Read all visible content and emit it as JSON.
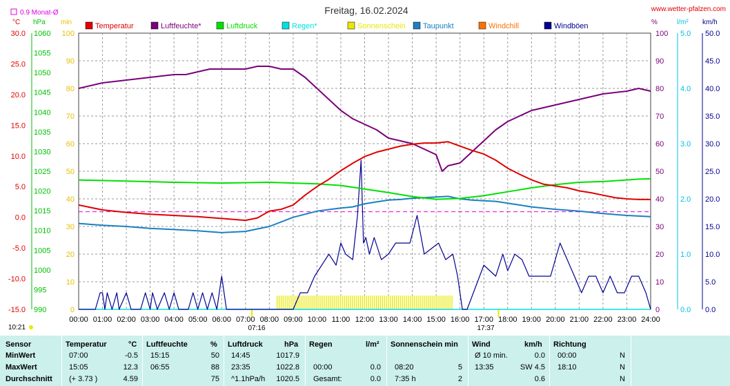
{
  "header": {
    "title": "Freitag, 16.02.2024",
    "site": "www.wetter-pfalzen.com",
    "monat_label": "0.9 Monat-Ø"
  },
  "units": {
    "degC": "°C",
    "hpa": "hPa",
    "min": "min",
    "pct": "%",
    "lm2": "l/m²",
    "kmh": "km/h"
  },
  "axes": {
    "temp_ticks": [
      "30.0",
      "25.0",
      "20.0",
      "15.0",
      "10.0",
      "5.0",
      "0.0",
      "-5.0",
      "-10.0",
      "-15.0"
    ],
    "press_ticks": [
      "1060",
      "1055",
      "1050",
      "1045",
      "1040",
      "1035",
      "1030",
      "1025",
      "1020",
      "1015",
      "1010",
      "1005",
      "1000",
      "995",
      "990"
    ],
    "min_ticks": [
      "100",
      "90",
      "80",
      "70",
      "60",
      "50",
      "40",
      "30",
      "20",
      "10",
      "0"
    ],
    "pct_ticks": [
      "100",
      "90",
      "80",
      "70",
      "60",
      "50",
      "40",
      "30",
      "20",
      "10",
      "0"
    ],
    "rain_ticks": [
      "5.0",
      "4.0",
      "3.0",
      "2.0",
      "1.0",
      "0.0"
    ],
    "wind_ticks": [
      "50.0",
      "45.0",
      "40.0",
      "35.0",
      "30.0",
      "25.0",
      "20.0",
      "15.0",
      "10.0",
      "5.0",
      "0.0"
    ],
    "time_ticks": [
      "00:00",
      "01:00",
      "02:00",
      "03:00",
      "04:00",
      "05:00",
      "06:00",
      "07:00",
      "08:00",
      "09:00",
      "10:00",
      "11:00",
      "12:00",
      "13:00",
      "14:00",
      "15:00",
      "16:00",
      "17:00",
      "18:00",
      "19:00",
      "20:00",
      "21:00",
      "22:00",
      "23:00",
      "24:00"
    ],
    "sunrise": "07:16",
    "sunset": "17:37",
    "update_time": "10:21"
  },
  "legend": [
    {
      "label": "Temperatur",
      "color": "#e00000"
    },
    {
      "label": "Luftfeuchte*",
      "color": "#7a007a"
    },
    {
      "label": "Luftdruck",
      "color": "#00e000"
    },
    {
      "label": "Regen*",
      "color": "#00e0e0"
    },
    {
      "label": "Sonnenschein",
      "color": "#e8e800"
    },
    {
      "label": "Taupunkt",
      "color": "#1a80c0"
    },
    {
      "label": "Windchill",
      "color": "#ff7000"
    },
    {
      "label": "Windböen",
      "color": "#000090"
    }
  ],
  "chart_data": {
    "type": "line",
    "title": "Freitag, 16.02.2024",
    "x_unit": "hour",
    "xlim": [
      0,
      24
    ],
    "temp_ylim": [
      -15,
      30
    ],
    "press_ylim": [
      990,
      1060
    ],
    "pct_ylim": [
      0,
      100
    ],
    "rain_ylim": [
      0,
      5
    ],
    "wind_ylim": [
      0,
      50
    ],
    "monat_avg_temp": 0.9,
    "series": [
      {
        "name": "Temperatur",
        "axis": "temp",
        "color": "#e00000",
        "x": [
          0,
          1,
          2,
          3,
          4,
          5,
          6,
          7,
          7.5,
          8,
          8.5,
          9,
          9.5,
          10,
          10.5,
          11,
          11.5,
          12,
          12.5,
          13,
          13.5,
          14,
          14.5,
          15,
          15.5,
          16,
          16.5,
          17,
          17.5,
          18,
          18.5,
          19,
          19.5,
          20,
          20.5,
          21,
          21.5,
          22,
          22.5,
          23,
          23.5,
          24
        ],
        "y": [
          2.0,
          1.2,
          0.8,
          0.5,
          0.3,
          0.1,
          -0.2,
          -0.5,
          -0.1,
          1.0,
          1.3,
          2.0,
          3.6,
          5.0,
          6.2,
          7.6,
          8.8,
          9.9,
          10.6,
          11.1,
          11.6,
          11.9,
          12.1,
          12.1,
          12.3,
          11.6,
          10.9,
          10.3,
          9.3,
          8.0,
          7.0,
          6.1,
          5.4,
          5.1,
          4.8,
          4.3,
          4.0,
          3.6,
          3.2,
          3.0,
          2.9,
          2.9
        ]
      },
      {
        "name": "Luftfeuchte*",
        "axis": "pct",
        "color": "#7a007a",
        "x": [
          0,
          0.5,
          1,
          2,
          3,
          4,
          4.5,
          5,
          5.5,
          6,
          6.5,
          7,
          7.5,
          8,
          8.5,
          9,
          9.5,
          10,
          10.5,
          11,
          11.5,
          12,
          12.5,
          13,
          13.5,
          14,
          14.5,
          15,
          15.25,
          15.5,
          16,
          16.5,
          17,
          17.5,
          18,
          18.5,
          19,
          19.5,
          20,
          21,
          22,
          23,
          23.5,
          24
        ],
        "y": [
          80,
          81,
          82,
          83,
          84,
          85,
          85,
          86,
          87,
          87,
          87,
          87,
          88,
          88,
          87,
          87,
          84,
          80,
          76,
          72,
          69,
          67,
          65,
          62,
          61,
          60,
          58,
          56,
          50,
          52,
          53,
          57,
          61,
          65,
          68,
          70,
          72,
          73,
          74,
          76,
          78,
          79,
          80,
          79
        ]
      },
      {
        "name": "Luftdruck",
        "axis": "press",
        "color": "#00e000",
        "x": [
          0,
          2,
          4,
          6,
          8,
          9,
          10,
          11,
          12,
          13,
          14,
          15,
          16,
          17,
          18,
          19,
          20,
          21,
          22,
          23,
          23.5,
          24
        ],
        "y": [
          1022.8,
          1022.5,
          1022.2,
          1022.0,
          1022.2,
          1022.0,
          1021.8,
          1021.4,
          1020.5,
          1019.6,
          1018.6,
          1017.9,
          1018.1,
          1018.8,
          1019.8,
          1020.8,
          1021.6,
          1022.2,
          1022.4,
          1022.8,
          1023.0,
          1023.1
        ]
      },
      {
        "name": "Taupunkt",
        "axis": "temp",
        "color": "#1a80c0",
        "x": [
          0,
          1,
          2,
          3,
          4,
          5,
          6,
          7,
          8,
          9,
          10,
          11,
          11.5,
          12,
          12.5,
          13,
          13.5,
          14,
          14.5,
          15,
          15.5,
          16,
          16.5,
          17,
          17.5,
          18,
          18.5,
          19,
          20,
          21,
          22,
          23,
          24
        ],
        "y": [
          -1.0,
          -1.3,
          -1.5,
          -1.8,
          -2.0,
          -2.2,
          -2.5,
          -2.3,
          -1.5,
          0.0,
          1.0,
          1.5,
          1.7,
          2.2,
          2.5,
          2.8,
          2.9,
          3.1,
          3.2,
          3.3,
          3.4,
          3.0,
          2.8,
          2.7,
          2.6,
          2.3,
          2.0,
          1.7,
          1.3,
          1.0,
          0.6,
          0.3,
          0.1
        ]
      },
      {
        "name": "Windböen",
        "axis": "wind",
        "color": "#000090",
        "x": [
          0,
          0.7,
          0.9,
          1.0,
          1.1,
          1.2,
          1.4,
          1.6,
          1.7,
          2.0,
          2.2,
          2.6,
          2.8,
          3.0,
          3.1,
          3.3,
          3.6,
          3.8,
          4.0,
          4.2,
          4.6,
          4.8,
          5.0,
          5.2,
          5.4,
          5.6,
          5.8,
          6.0,
          6.2,
          6.4,
          7.0,
          8.0,
          9.0,
          9.3,
          9.6,
          9.9,
          10.2,
          10.5,
          10.8,
          11.0,
          11.2,
          11.5,
          11.7,
          11.85,
          11.95,
          12.05,
          12.2,
          12.4,
          12.7,
          13.0,
          13.3,
          13.6,
          13.9,
          14.2,
          14.5,
          14.8,
          15.1,
          15.4,
          15.7,
          15.9,
          16.1,
          16.3,
          17.0,
          17.5,
          17.8,
          18.0,
          18.3,
          18.6,
          18.9,
          19.2,
          19.5,
          19.8,
          20.2,
          20.5,
          20.8,
          21.1,
          21.4,
          21.7,
          22.0,
          22.3,
          22.6,
          22.9,
          23.2,
          23.5,
          23.8,
          24.0
        ],
        "y": [
          0,
          0,
          3,
          3,
          0,
          3,
          0,
          3,
          0,
          3,
          0,
          0,
          3,
          0,
          3,
          0,
          3,
          0,
          3,
          0,
          0,
          3,
          0,
          3,
          0,
          3,
          0,
          6,
          0,
          0,
          0,
          0,
          0,
          3,
          3,
          6,
          8,
          10,
          8,
          12,
          10,
          9,
          17,
          27,
          12,
          13,
          10,
          13,
          9,
          10,
          12,
          12,
          12,
          17,
          10,
          11,
          12,
          9,
          10,
          6,
          0,
          0,
          8,
          6,
          10,
          7,
          10,
          9,
          6,
          6,
          6,
          6,
          12,
          9,
          6,
          3,
          6,
          6,
          3,
          6,
          3,
          3,
          6,
          6,
          3,
          0
        ]
      }
    ],
    "sunshine_hours": [
      [
        8.33,
        15.72
      ]
    ],
    "rain_total": 0.0
  },
  "summary": {
    "headers": {
      "sensor": "Sensor",
      "temperatur": "Temperatur",
      "temp_unit": "°C",
      "luftfeuchte": "Luftfeuchte",
      "hum_unit": "%",
      "luftdruck": "Luftdruck",
      "press_unit": "hPa",
      "regen": "Regen",
      "rain_unit": "l/m²",
      "sonne": "Sonnenschein min",
      "wind": "Wind",
      "wind_unit": "km/h",
      "richtung": "Richtung"
    },
    "rows": [
      {
        "label": "MinWert",
        "temp_time": "07:00",
        "temp_val": "-0.5",
        "hum_time": "15:15",
        "hum_val": "50",
        "press_time": "14:45",
        "press_val": "1017.9",
        "rain_time": "",
        "rain_val": "",
        "sun_time": "",
        "sun_val": "",
        "wind_time": "Ø 10 min.",
        "wind_val": "0.0",
        "dir_time": "00:00",
        "dir_val": "N"
      },
      {
        "label": "MaxWert",
        "temp_time": "15:05",
        "temp_val": "12.3",
        "hum_time": "06:55",
        "hum_val": "88",
        "press_time": "23:35",
        "press_val": "1022.8",
        "rain_time": "00:00",
        "rain_val": "0.0",
        "sun_time": "08:20",
        "sun_val": "5",
        "wind_time": "13:35",
        "wind_val": "SW 4.5",
        "dir_time": "18:10",
        "dir_val": "N"
      },
      {
        "label": "Durchschnitt",
        "temp_time": "(+ 3.73 )",
        "temp_val": "4.59",
        "hum_time": "",
        "hum_val": "75",
        "press_time": "^1.1hPa/h",
        "press_val": "1020.5",
        "rain_time": "Gesamt:",
        "rain_val": "0.0",
        "sun_time": "7:35 h",
        "sun_val": "2",
        "wind_time": "",
        "wind_val": "0.6",
        "dir_time": "",
        "dir_val": "N"
      }
    ]
  }
}
